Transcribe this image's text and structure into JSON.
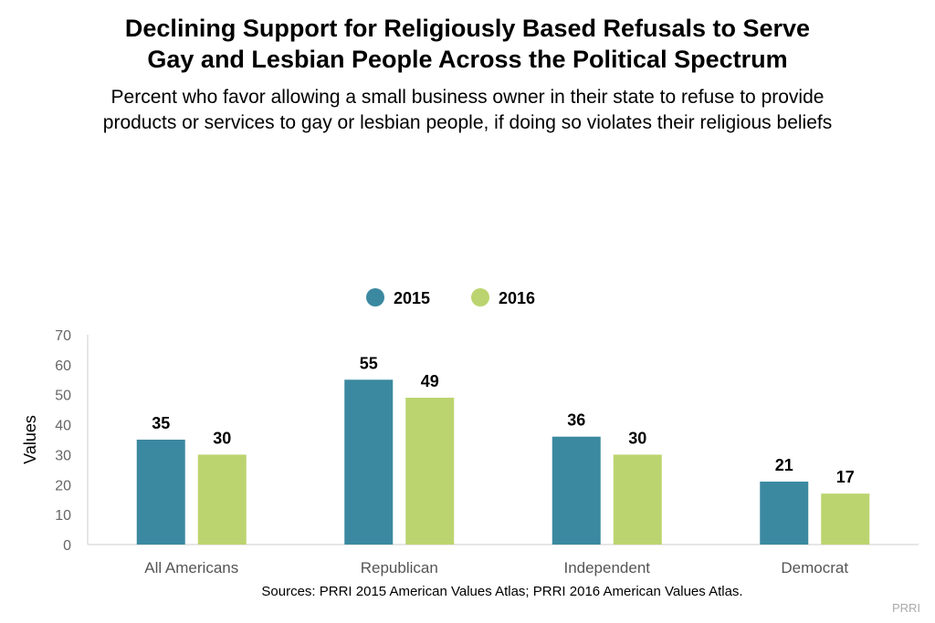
{
  "title_lines": [
    "Declining Support for Religiously Based Refusals to Serve",
    "Gay and Lesbian People Across the Political Spectrum"
  ],
  "subtitle_lines": [
    "Percent who favor allowing a small business owner in their state to refuse to provide",
    "products or services to gay or lesbian people, if doing so violates their religious beliefs"
  ],
  "source": "Sources: PRRI 2015 American Values Atlas; PRRI 2016 American Values Atlas.",
  "credit": "PRRI",
  "chart_data": {
    "type": "bar",
    "title": "Declining Support for Religiously Based Refusals to Serve Gay and Lesbian People Across the Political Spectrum",
    "categories": [
      "All Americans",
      "Republican",
      "Independent",
      "Democrat"
    ],
    "series": [
      {
        "name": "2015",
        "color": "#3b89a0",
        "values": [
          35,
          55,
          36,
          21
        ]
      },
      {
        "name": "2016",
        "color": "#bcd46f",
        "values": [
          30,
          49,
          30,
          17
        ]
      }
    ],
    "xlabel": "",
    "ylabel": "Values",
    "ylim": [
      0,
      70
    ],
    "yticks": [
      0,
      10,
      20,
      30,
      40,
      50,
      60,
      70
    ],
    "grid": false,
    "legend_position": "top-center",
    "data_labels": true
  }
}
